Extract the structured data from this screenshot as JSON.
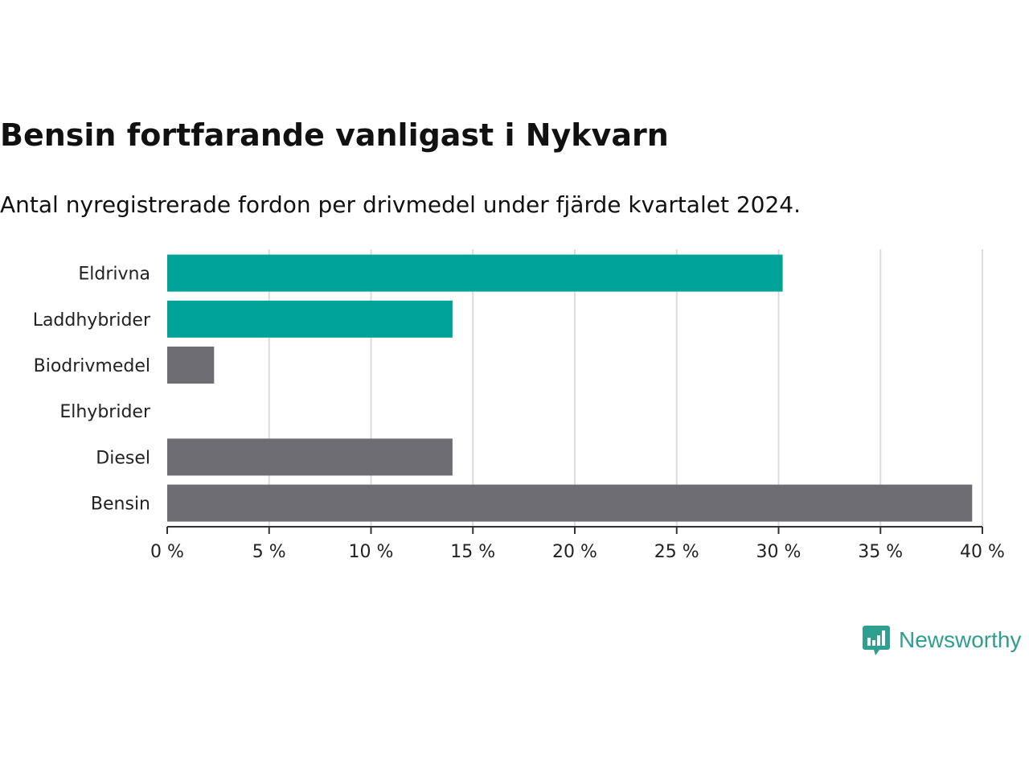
{
  "title": "Bensin fortfarande vanligast i Nykvarn",
  "subtitle": "Antal nyregistrerade fordon per drivmedel under fjärde kvartalet 2024.",
  "brand": {
    "name": "Newsworthy",
    "color": "#2e9e8f"
  },
  "colors": {
    "highlight": "#00a398",
    "default": "#6e6d73",
    "grid": "#dcdcdc",
    "axis": "#333333"
  },
  "chart_data": {
    "type": "bar",
    "orientation": "horizontal",
    "categories": [
      "Eldrivna",
      "Laddhybrider",
      "Biodrivmedel",
      "Elhybrider",
      "Diesel",
      "Bensin"
    ],
    "values": [
      30.2,
      14.0,
      2.3,
      0,
      14.0,
      39.5
    ],
    "highlighted": [
      true,
      true,
      false,
      false,
      false,
      false
    ],
    "xlim": [
      0,
      40
    ],
    "xticks": [
      0,
      5,
      10,
      15,
      20,
      25,
      30,
      35,
      40
    ],
    "xtick_labels": [
      "0 %",
      "5 %",
      "10 %",
      "15 %",
      "20 %",
      "25 %",
      "30 %",
      "35 %",
      "40 %"
    ],
    "xlabel": "",
    "ylabel": "",
    "grid": true
  }
}
